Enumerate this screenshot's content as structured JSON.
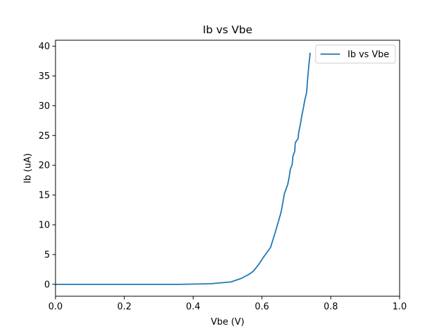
{
  "chart_data": {
    "type": "line",
    "title": "Ib vs Vbe",
    "xlabel": "Vbe (V)",
    "ylabel": "Ib (uA)",
    "xlim": [
      0.0,
      1.0
    ],
    "ylim": [
      -2.0,
      41.0
    ],
    "xticks": [
      0.0,
      0.2,
      0.4,
      0.6,
      0.8,
      1.0
    ],
    "xtick_labels": [
      "0.0",
      "0.2",
      "0.4",
      "0.6",
      "0.8",
      "1.0"
    ],
    "yticks": [
      0,
      5,
      10,
      15,
      20,
      25,
      30,
      35,
      40
    ],
    "ytick_labels": [
      "0",
      "5",
      "10",
      "15",
      "20",
      "25",
      "30",
      "35",
      "40"
    ],
    "grid": false,
    "legend_position": "top-right",
    "series": [
      {
        "name": "Ib vs Vbe",
        "color": "#1f77b4",
        "x": [
          0.0,
          0.1,
          0.2,
          0.3,
          0.36,
          0.45,
          0.51,
          0.54,
          0.56,
          0.575,
          0.59,
          0.605,
          0.625,
          0.64,
          0.655,
          0.66,
          0.665,
          0.675,
          0.68,
          0.682,
          0.688,
          0.69,
          0.695,
          0.697,
          0.705,
          0.707,
          0.712,
          0.716,
          0.72,
          0.724,
          0.73,
          0.732,
          0.735,
          0.737,
          0.74
        ],
        "y": [
          0.0,
          0.0,
          0.0,
          0.0,
          0.0,
          0.1,
          0.4,
          1.0,
          1.6,
          2.2,
          3.3,
          4.6,
          6.2,
          9.0,
          12.0,
          13.5,
          15.2,
          16.8,
          18.3,
          19.2,
          20.2,
          21.5,
          22.3,
          23.8,
          24.5,
          25.6,
          27.0,
          28.4,
          29.5,
          30.8,
          32.3,
          34.0,
          36.0,
          37.2,
          38.8
        ]
      }
    ]
  }
}
